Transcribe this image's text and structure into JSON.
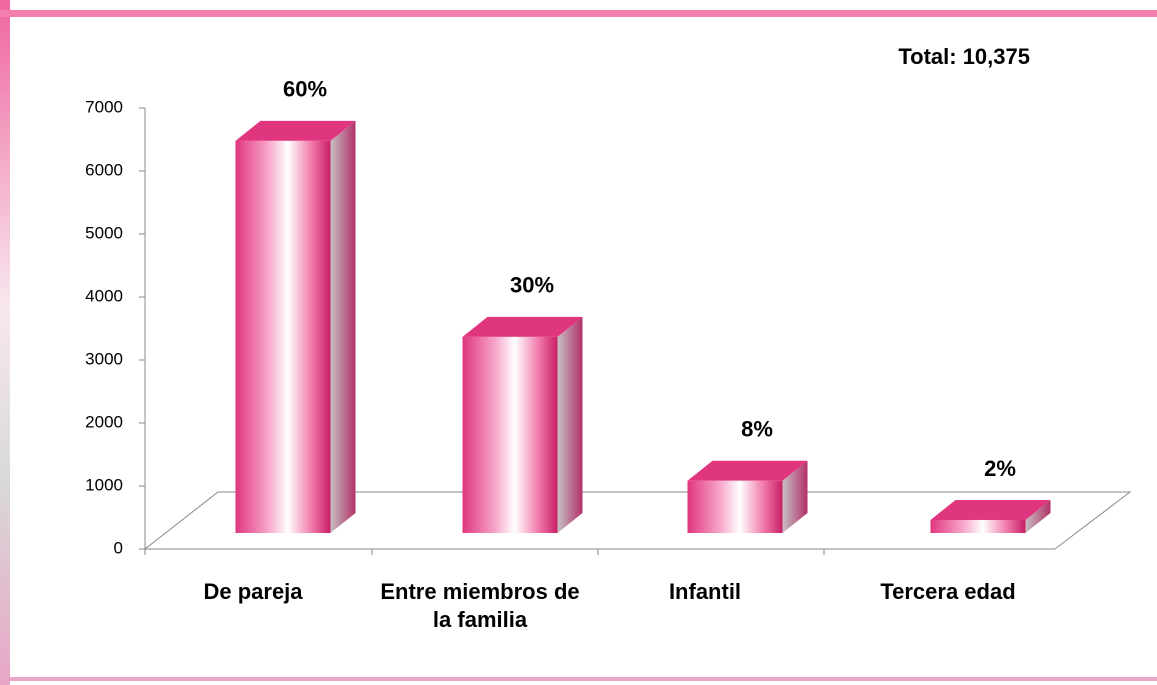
{
  "chart_data": {
    "type": "bar3d",
    "annotation": "Total: 10,375",
    "categories": [
      "De pareja",
      "Entre miembros de la familia",
      "Infantil",
      "Tercera edad"
    ],
    "values": [
      6225,
      3113,
      830,
      207
    ],
    "shares": [
      {
        "value": 60,
        "label": "60%"
      },
      {
        "value": 30,
        "label": "30%"
      },
      {
        "value": 8,
        "label": "8%"
      },
      {
        "value": 2,
        "label": "2%"
      }
    ],
    "color": "#e0357f",
    "ylim": [
      0,
      7000
    ],
    "yticks": [
      0,
      1000,
      2000,
      3000,
      4000,
      5000,
      6000,
      7000
    ]
  }
}
